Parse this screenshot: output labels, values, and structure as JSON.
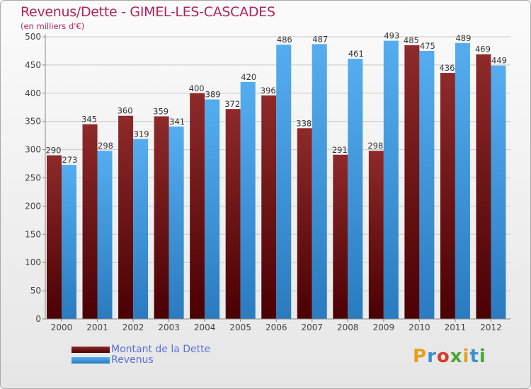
{
  "title": "Revenus/Dette - GIMEL-LES-CASCADES",
  "subtitle": "(en milliers d'€)",
  "logo": {
    "text": "Proxiti",
    "letters": [
      {
        "ch": "P",
        "color": "#e8a020"
      },
      {
        "ch": "r",
        "color": "#3a8fd0"
      },
      {
        "ch": "o",
        "color": "#d83a2a"
      },
      {
        "ch": "x",
        "color": "#4aa53a"
      },
      {
        "ch": "i",
        "color": "#e8a020"
      },
      {
        "ch": "t",
        "color": "#3a8fd0"
      },
      {
        "ch": "i",
        "color": "#4aa53a"
      }
    ]
  },
  "colors": {
    "dette": "#7a1416",
    "revenus": "#3d96db",
    "title": "#b1245a",
    "legend_text": "#5b6fd6"
  },
  "chart_data": {
    "type": "bar",
    "title": "Revenus/Dette - GIMEL-LES-CASCADES",
    "subtitle": "(en milliers d'€)",
    "categories": [
      "2000",
      "2001",
      "2002",
      "2003",
      "2004",
      "2005",
      "2006",
      "2007",
      "2008",
      "2009",
      "2010",
      "2011",
      "2012"
    ],
    "series": [
      {
        "name": "Montant de la Dette",
        "values": [
          290,
          345,
          360,
          359,
          400,
          372,
          396,
          338,
          291,
          298,
          485,
          436,
          469
        ]
      },
      {
        "name": "Revenus",
        "values": [
          273,
          298,
          319,
          341,
          389,
          420,
          486,
          487,
          461,
          493,
          475,
          489,
          449
        ]
      }
    ],
    "ylim": [
      0,
      500
    ],
    "yticks": [
      0,
      50,
      100,
      150,
      200,
      250,
      300,
      350,
      400,
      450,
      500
    ],
    "grid": true,
    "legend": "bottom-left"
  }
}
